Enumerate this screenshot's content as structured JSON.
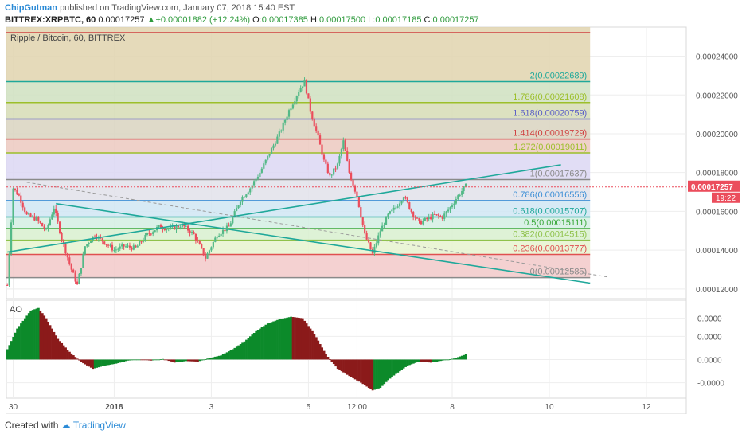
{
  "header": {
    "user": "ChipGutman",
    "published_text": "published on TradingView.com, January 07, 2018 15:40 EST",
    "symbol": "BITTREX:XRPBTC, 60",
    "last": "0.00017257",
    "arrow": "▲",
    "change": "+0.00001882 (+12.24%)",
    "o_label": "O:",
    "o": "0.00017385",
    "h_label": "H:",
    "h": "0.00017500",
    "l_label": "L:",
    "l": "0.00017185",
    "c_label": "C:",
    "c": "0.00017257"
  },
  "footer": {
    "created_with": "Created with",
    "brand": "TradingView"
  },
  "chart_data": {
    "type": "candlestick",
    "title": "Ripple / Bitcoin, 60, BITTREX",
    "ylim": [
      0.000115,
      0.000255
    ],
    "y_ticks": [
      "0.00024000",
      "0.00022000",
      "0.00020000",
      "0.00018000",
      "0.00016000",
      "0.00014000",
      "0.00012000"
    ],
    "y_tick_values": [
      0.00024,
      0.00022,
      0.0002,
      0.00018,
      0.00016,
      0.00014,
      0.00012
    ],
    "x_ticks": [
      "30",
      "2018",
      "3",
      "5",
      "12:00",
      "8",
      "10",
      "12"
    ],
    "x_tick_bars": [
      3,
      55,
      105,
      155,
      180,
      229,
      279,
      329
    ],
    "total_bar_slots": 350,
    "price_label": "0.00017257",
    "countdown_label": "19:22",
    "last_price": 0.00017257,
    "fib_levels": [
      {
        "ratio": "0",
        "value": 0.00012585,
        "label": "0(0.00012585)",
        "color": "#8a8a8a",
        "fill": "#f2c9c9"
      },
      {
        "ratio": "0.236",
        "value": 0.00013777,
        "label": "0.236(0.00013777)",
        "color": "#e05050",
        "fill": "#e6f3cf"
      },
      {
        "ratio": "0.382",
        "value": 0.00014515,
        "label": "0.382(0.00014515)",
        "color": "#8fc24b",
        "fill": "#d8f0cf"
      },
      {
        "ratio": "0.5",
        "value": 0.00015111,
        "label": "0.5(0.00015111)",
        "color": "#3aa83a",
        "fill": "#d3efe3"
      },
      {
        "ratio": "0.618",
        "value": 0.00015707,
        "label": "0.618(0.00015707)",
        "color": "#1fa89a",
        "fill": "#d0e6f3"
      },
      {
        "ratio": "0.786",
        "value": 0.00016556,
        "label": "0.786(0.00016556)",
        "color": "#3d8fd6",
        "fill": "#e2e2ea"
      },
      {
        "ratio": "1",
        "value": 0.00017637,
        "label": "1(0.00017637)",
        "color": "#8a8a8a",
        "fill": "#dcd7f3"
      },
      {
        "ratio": "1.272",
        "value": 0.00019011,
        "label": "1.272(0.00019011)",
        "color": "#9cbf2a",
        "fill": "#ecc9c0"
      },
      {
        "ratio": "1.414",
        "value": 0.00019729,
        "label": "1.414(0.00019729)",
        "color": "#d04040",
        "fill": "#d9d4c0"
      },
      {
        "ratio": "1.618",
        "value": 0.00020759,
        "label": "1.618(0.00020759)",
        "color": "#5b5fc7",
        "fill": "#d6dcb5"
      },
      {
        "ratio": "1.786",
        "value": 0.00021608,
        "label": "1.786(0.00021608)",
        "color": "#9cbf2a",
        "fill": "#cfe0bf"
      },
      {
        "ratio": "2",
        "value": 0.00022689,
        "label": "2(0.00022689)",
        "color": "#1fa89a",
        "fill": "#e1d3ae"
      },
      {
        "ratio": "2.618",
        "value": 0.00025808,
        "label": "",
        "color": "#d04040",
        "fill": null
      }
    ],
    "price_path": [
      [
        0,
        0.000122
      ],
      [
        3,
        0.000172
      ],
      [
        6,
        0.000168
      ],
      [
        10,
        0.000158
      ],
      [
        15,
        0.000156
      ],
      [
        20,
        0.00015
      ],
      [
        24,
        0.000162
      ],
      [
        28,
        0.000146
      ],
      [
        33,
        0.00013
      ],
      [
        36,
        0.000122
      ],
      [
        40,
        0.000142
      ],
      [
        45,
        0.000148
      ],
      [
        50,
        0.000144
      ],
      [
        55,
        0.00014
      ],
      [
        60,
        0.000142
      ],
      [
        66,
        0.000141
      ],
      [
        72,
        0.000148
      ],
      [
        78,
        0.000152
      ],
      [
        84,
        0.000151
      ],
      [
        90,
        0.000153
      ],
      [
        96,
        0.000148
      ],
      [
        102,
        0.000136
      ],
      [
        108,
        0.000148
      ],
      [
        114,
        0.000152
      ],
      [
        120,
        0.000166
      ],
      [
        125,
        0.000172
      ],
      [
        130,
        0.00018
      ],
      [
        135,
        0.00019
      ],
      [
        140,
        0.0002
      ],
      [
        145,
        0.000212
      ],
      [
        150,
        0.000222
      ],
      [
        153,
        0.000227
      ],
      [
        156,
        0.000212
      ],
      [
        160,
        0.000198
      ],
      [
        163,
        0.000186
      ],
      [
        166,
        0.000178
      ],
      [
        170,
        0.000184
      ],
      [
        173,
        0.000196
      ],
      [
        176,
        0.00018
      ],
      [
        180,
        0.000168
      ],
      [
        184,
        0.000148
      ],
      [
        188,
        0.000138
      ],
      [
        192,
        0.00015
      ],
      [
        196,
        0.000158
      ],
      [
        200,
        0.000162
      ],
      [
        204,
        0.000168
      ],
      [
        208,
        0.00016
      ],
      [
        212,
        0.000154
      ],
      [
        216,
        0.000156
      ],
      [
        220,
        0.000158
      ],
      [
        224,
        0.000157
      ],
      [
        228,
        0.000162
      ],
      [
        232,
        0.000168
      ],
      [
        236,
        0.000173
      ]
    ],
    "trend_lines": [
      {
        "from": [
          0,
          0.000139
        ],
        "to": [
          285,
          0.000184
        ],
        "color": "#1fa89a",
        "dash": false
      },
      {
        "from": [
          25,
          0.000164
        ],
        "to": [
          300,
          0.000123
        ],
        "color": "#1fa89a",
        "dash": false
      },
      {
        "from": [
          10,
          0.000175
        ],
        "to": [
          310,
          0.000126
        ],
        "color": "#9a9a9a",
        "dash": true
      }
    ],
    "oscillator": {
      "label": "AO",
      "y_ticks": [
        "0.0000",
        "0.0000",
        "0.0000",
        "-0.0000"
      ],
      "y_tick_values": [
        8e-06,
        4.5e-06,
        0.0,
        -4.5e-06
      ],
      "ylim": [
        -7.5e-06,
        1.15e-05
      ],
      "path": [
        [
          0,
          2e-06
        ],
        [
          5,
          6e-06
        ],
        [
          12,
          9.5e-06
        ],
        [
          16,
          1e-05
        ],
        [
          20,
          8e-06
        ],
        [
          26,
          4e-06
        ],
        [
          32,
          1.5e-06
        ],
        [
          38,
          -5e-07
        ],
        [
          44,
          -1.8e-06
        ],
        [
          50,
          -1.2e-06
        ],
        [
          56,
          -8e-07
        ],
        [
          62,
          -2e-07
        ],
        [
          68,
          0.0
        ],
        [
          74,
          -2e-07
        ],
        [
          80,
          1e-07
        ],
        [
          86,
          -6e-07
        ],
        [
          92,
          -3e-07
        ],
        [
          98,
          -4e-07
        ],
        [
          104,
          3e-07
        ],
        [
          110,
          8e-07
        ],
        [
          116,
          2e-06
        ],
        [
          122,
          3.5e-06
        ],
        [
          128,
          5.5e-06
        ],
        [
          134,
          7e-06
        ],
        [
          140,
          7.8e-06
        ],
        [
          146,
          8.3e-06
        ],
        [
          152,
          8e-06
        ],
        [
          158,
          5e-06
        ],
        [
          164,
          1e-06
        ],
        [
          170,
          -1.8e-06
        ],
        [
          176,
          -3.2e-06
        ],
        [
          182,
          -4.5e-06
        ],
        [
          188,
          -6e-06
        ],
        [
          192,
          -5.5e-06
        ],
        [
          196,
          -4e-06
        ],
        [
          200,
          -2.8e-06
        ],
        [
          206,
          -1.2e-06
        ],
        [
          212,
          -4e-07
        ],
        [
          218,
          -6e-07
        ],
        [
          224,
          -2e-07
        ],
        [
          230,
          2e-07
        ],
        [
          236,
          1e-06
        ]
      ]
    }
  }
}
